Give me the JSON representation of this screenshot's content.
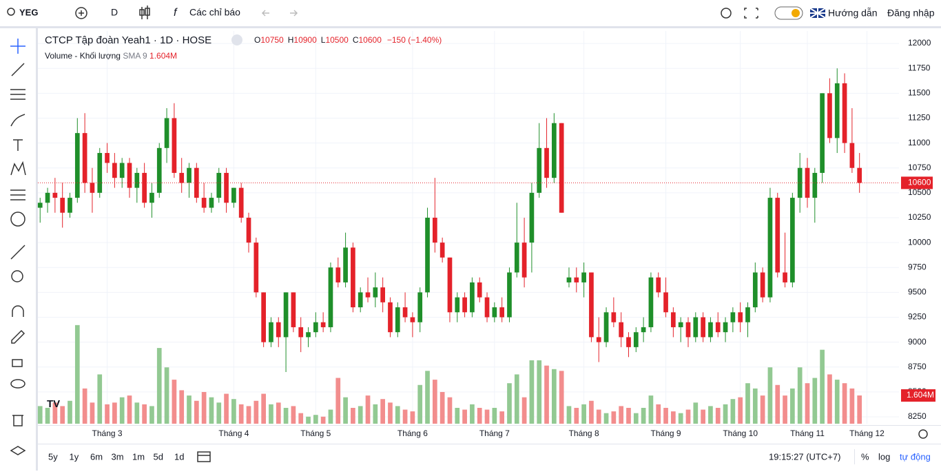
{
  "toolbar": {
    "symbol": "YEG",
    "interval": "D",
    "indicators": "Các chỉ báo",
    "guide": "Hướng dẫn",
    "login": "Đăng nhập"
  },
  "chart_data": {
    "type": "candlestick",
    "title": "CTCP Tập đoàn Yeah1 · 1D · HOSE",
    "ohlc_prefixes": [
      "O",
      "H",
      "L",
      "C"
    ],
    "change": "−150 (−1.40%)",
    "volume_title": "Volume - Khối lượng",
    "volume_sma": "SMA 9",
    "candles": [
      [
        10350,
        10450,
        10200,
        10400
      ],
      [
        10400,
        10550,
        10300,
        10500
      ],
      [
        10500,
        10650,
        10300,
        10450
      ],
      [
        10450,
        10600,
        10150,
        10300
      ],
      [
        10300,
        10500,
        10250,
        10450
      ],
      [
        10450,
        11250,
        10400,
        11100
      ],
      [
        11100,
        11300,
        10500,
        10600
      ],
      [
        10600,
        10750,
        10300,
        10500
      ],
      [
        10500,
        10950,
        10450,
        10900
      ],
      [
        10900,
        11000,
        10700,
        10800
      ],
      [
        10800,
        10900,
        10550,
        10650
      ],
      [
        10650,
        10850,
        10550,
        10800
      ],
      [
        10800,
        10850,
        10450,
        10550
      ],
      [
        10550,
        10750,
        10400,
        10700
      ],
      [
        10700,
        10800,
        10350,
        10400
      ],
      [
        10400,
        10600,
        10250,
        10500
      ],
      [
        10500,
        11000,
        10450,
        10950
      ],
      [
        10950,
        11350,
        10800,
        11250
      ],
      [
        11250,
        11400,
        10650,
        10700
      ],
      [
        10700,
        10850,
        10500,
        10600
      ],
      [
        10600,
        10800,
        10450,
        10750
      ],
      [
        10750,
        10800,
        10400,
        10450
      ],
      [
        10450,
        10600,
        10300,
        10350
      ],
      [
        10350,
        10500,
        10300,
        10450
      ],
      [
        10450,
        10750,
        10400,
        10700
      ],
      [
        10700,
        10750,
        10300,
        10400
      ],
      [
        10400,
        10550,
        10350,
        10550
      ],
      [
        10550,
        10600,
        10200,
        10250
      ],
      [
        10250,
        10300,
        9900,
        10000
      ],
      [
        10000,
        10050,
        9450,
        9500
      ],
      [
        9500,
        9500,
        8950,
        9000
      ],
      [
        9000,
        9250,
        8950,
        9200
      ],
      [
        9200,
        9250,
        8950,
        9050
      ],
      [
        9050,
        9500,
        8700,
        9500
      ],
      [
        9500,
        9500,
        9100,
        9150
      ],
      [
        9150,
        9250,
        8900,
        9050
      ],
      [
        9050,
        9150,
        8950,
        9100
      ],
      [
        9100,
        9300,
        9050,
        9200
      ],
      [
        9200,
        9300,
        9100,
        9150
      ],
      [
        9150,
        9800,
        9100,
        9750
      ],
      [
        9750,
        9850,
        9550,
        9600
      ],
      [
        9600,
        10100,
        9550,
        9950
      ],
      [
        9950,
        10000,
        9300,
        9350
      ],
      [
        9350,
        9550,
        9300,
        9500
      ],
      [
        9500,
        9650,
        9400,
        9450
      ],
      [
        9450,
        9700,
        9350,
        9550
      ],
      [
        9550,
        9650,
        9300,
        9400
      ],
      [
        9400,
        9450,
        9050,
        9100
      ],
      [
        9100,
        9400,
        9050,
        9350
      ],
      [
        9350,
        9500,
        9200,
        9250
      ],
      [
        9250,
        9300,
        9050,
        9200
      ],
      [
        9200,
        9550,
        9100,
        9500
      ],
      [
        9500,
        10350,
        9450,
        10250
      ],
      [
        10250,
        10650,
        9900,
        10000
      ],
      [
        10000,
        10050,
        9800,
        9850
      ],
      [
        9850,
        9850,
        9200,
        9300
      ],
      [
        9300,
        9500,
        9200,
        9450
      ],
      [
        9450,
        9500,
        9250,
        9300
      ],
      [
        9300,
        9650,
        9250,
        9600
      ],
      [
        9600,
        9650,
        9400,
        9450
      ],
      [
        9450,
        9500,
        9200,
        9250
      ],
      [
        9250,
        9400,
        9200,
        9350
      ],
      [
        9350,
        9450,
        9200,
        9250
      ],
      [
        9250,
        9750,
        9200,
        9700
      ],
      [
        9700,
        10400,
        9650,
        10000
      ],
      [
        10000,
        10250,
        9550,
        9650
      ],
      [
        10000,
        10600,
        9700,
        10500
      ],
      [
        10500,
        11200,
        10450,
        10950
      ],
      [
        10950,
        11250,
        10550,
        10650
      ],
      [
        10650,
        11300,
        10600,
        11200
      ],
      [
        11200,
        11200,
        10300,
        10300
      ],
      [
        9600,
        9750,
        9550,
        9650
      ],
      [
        9650,
        9750,
        9500,
        9600
      ],
      [
        9600,
        9800,
        9450,
        9700
      ],
      [
        9700,
        9700,
        9000,
        9050
      ],
      [
        9050,
        9250,
        8800,
        9000
      ],
      [
        9000,
        9350,
        8950,
        9300
      ],
      [
        9300,
        9450,
        9150,
        9200
      ],
      [
        9200,
        9300,
        8950,
        9050
      ],
      [
        9050,
        9100,
        8850,
        8950
      ],
      [
        8950,
        9150,
        8900,
        9100
      ],
      [
        9100,
        9250,
        9000,
        9150
      ],
      [
        9150,
        9700,
        9100,
        9650
      ],
      [
        9650,
        9700,
        9450,
        9500
      ],
      [
        9500,
        9650,
        9250,
        9300
      ],
      [
        9300,
        9350,
        9050,
        9150
      ],
      [
        9150,
        9250,
        9000,
        9200
      ],
      [
        9200,
        9250,
        8950,
        9050
      ],
      [
        9050,
        9300,
        9000,
        9250
      ],
      [
        9250,
        9300,
        9000,
        9050
      ],
      [
        9050,
        9250,
        9000,
        9200
      ],
      [
        9200,
        9300,
        9050,
        9100
      ],
      [
        9100,
        9250,
        9000,
        9200
      ],
      [
        9200,
        9350,
        9100,
        9300
      ],
      [
        9300,
        9400,
        9100,
        9200
      ],
      [
        9200,
        9400,
        9050,
        9350
      ],
      [
        9350,
        9800,
        9300,
        9700
      ],
      [
        9700,
        9750,
        9400,
        9450
      ],
      [
        9450,
        10550,
        9400,
        10450
      ],
      [
        10450,
        10500,
        9650,
        9700
      ],
      [
        9700,
        10100,
        9550,
        9600
      ],
      [
        9600,
        10500,
        9550,
        10450
      ],
      [
        10450,
        10900,
        10300,
        10750
      ],
      [
        10750,
        10850,
        10350,
        10450
      ],
      [
        10450,
        10750,
        10200,
        10700
      ],
      [
        10700,
        11500,
        10600,
        11500
      ],
      [
        11500,
        11650,
        11000,
        11050
      ],
      [
        11050,
        11750,
        10900,
        11600
      ],
      [
        11600,
        11700,
        10900,
        11000
      ],
      [
        11000,
        11350,
        10700,
        10750
      ],
      [
        10750,
        10900,
        10500,
        10600
      ]
    ],
    "volume": [
      1.0,
      0.9,
      1.2,
      1.0,
      1.3,
      5.6,
      2.0,
      1.2,
      2.8,
      1.1,
      1.2,
      1.5,
      1.6,
      1.2,
      1.1,
      1.0,
      4.3,
      3.2,
      2.5,
      1.9,
      1.6,
      1.3,
      1.8,
      1.5,
      1.2,
      1.7,
      1.4,
      1.1,
      1.0,
      1.3,
      1.7,
      1.1,
      1.2,
      0.9,
      1.0,
      0.6,
      0.4,
      0.5,
      0.4,
      0.8,
      2.6,
      1.5,
      0.9,
      1.0,
      1.6,
      1.1,
      1.4,
      1.2,
      1.0,
      0.8,
      0.7,
      2.2,
      3.0,
      2.5,
      1.8,
      1.5,
      0.9,
      0.8,
      1.1,
      0.9,
      0.8,
      0.9,
      0.7,
      2.3,
      2.8,
      1.5,
      3.6,
      3.6,
      3.3,
      3.1,
      3.0,
      1.0,
      0.9,
      1.1,
      1.3,
      0.8,
      0.6,
      0.7,
      1.0,
      0.9,
      0.6,
      0.9,
      1.6,
      1.1,
      0.9,
      0.7,
      0.6,
      0.8,
      1.2,
      0.8,
      1.0,
      0.9,
      1.1,
      1.4,
      1.5,
      2.3,
      2.0,
      1.6,
      3.2,
      2.2,
      1.6,
      2.0,
      3.2,
      2.3,
      2.6,
      4.2,
      2.8,
      2.5,
      2.3,
      2.0,
      1.604
    ],
    "volume_last_label": "1.604M",
    "ylim": [
      8181,
      12125
    ],
    "yticks": [
      8250,
      8500,
      8750,
      9000,
      9250,
      9500,
      9750,
      10000,
      10250,
      10500,
      10750,
      11000,
      11250,
      11500,
      11750,
      12000
    ],
    "volume_lim": [
      0,
      22.3
    ],
    "xlim": [
      -0.3,
      115.3
    ],
    "xticks": [
      {
        "value": 9,
        "label": "Tháng 3"
      },
      {
        "value": 26,
        "label": "Tháng 4"
      },
      {
        "value": 37,
        "label": "Tháng 5"
      },
      {
        "value": 50,
        "label": "Tháng 6"
      },
      {
        "value": 61,
        "label": "Tháng 7"
      },
      {
        "value": 73,
        "label": "Tháng 8"
      },
      {
        "value": 84,
        "label": "Tháng 9"
      },
      {
        "value": 94,
        "label": "Tháng 10"
      },
      {
        "value": 103,
        "label": "Tháng 11"
      },
      {
        "value": 111,
        "label": "Tháng 12"
      }
    ],
    "up_color": "#1f8f2a",
    "down_color": "#e4222a",
    "volume_up_color": "#92c992",
    "volume_down_color": "#f28d8d",
    "grid": true
  },
  "bottom_bar": {
    "ranges": [
      "5y",
      "1y",
      "6m",
      "3m",
      "1m",
      "5d",
      "1d"
    ],
    "time": "19:15:27 (UTC+7)",
    "percent": "%",
    "log": "log",
    "auto": "tự động"
  }
}
